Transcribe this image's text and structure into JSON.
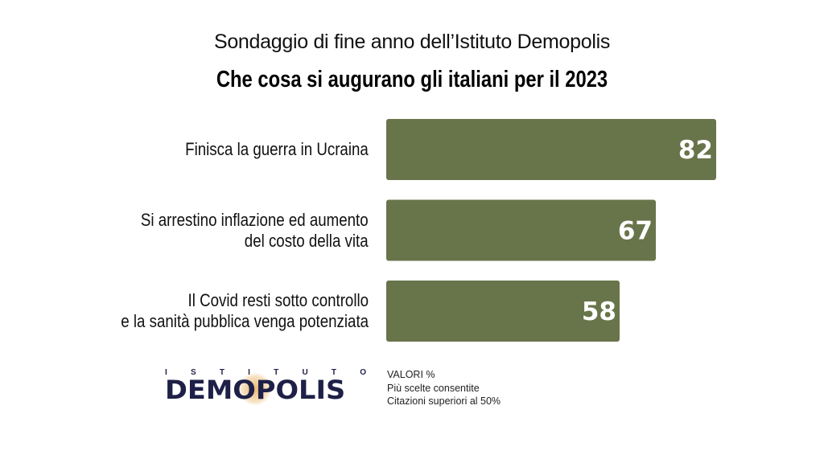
{
  "header": {
    "subtitle": "Sondaggio di fine anno dell’Istituto Demopolis",
    "title": "Che cosa si augurano gli italiani per il 2023"
  },
  "chart_data": {
    "type": "bar",
    "orientation": "horizontal",
    "title": "Che cosa si augurano gli italiani per il 2023",
    "subtitle": "Sondaggio di fine anno dell’Istituto Demopolis",
    "categories": [
      [
        "Finisca la guerra in Ucraina"
      ],
      [
        "Si arrestino inflazione ed aumento",
        "del costo della vita"
      ],
      [
        "Il Covid resti sotto controllo",
        "e la sanità  pubblica venga potenziata"
      ]
    ],
    "values": [
      82,
      67,
      58
    ],
    "value_labels": [
      "82",
      "67",
      "58"
    ],
    "unit": "%",
    "xlim": [
      0,
      100
    ],
    "grid": false,
    "legend": "none",
    "bar_color": "#68744a"
  },
  "footer": {
    "logo": {
      "top": "ISTITUTO",
      "main": "DEMOPOLIS"
    },
    "notes": [
      "VALORI %",
      "Più scelte consentite",
      "Citazioni superiori al 50%"
    ]
  },
  "colors": {
    "bar": "#68744a",
    "logo_navy": "#1e2047",
    "logo_accent": "#e2a046"
  }
}
